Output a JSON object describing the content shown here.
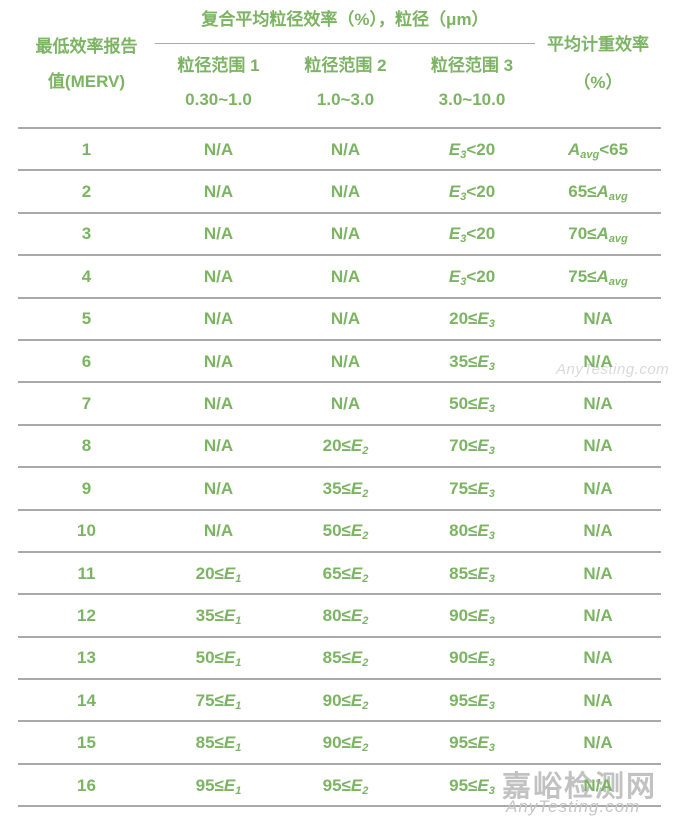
{
  "colors": {
    "text_green": "#7cb464",
    "line_gray": "#a9a9a9",
    "watermark_gray": "#bdbdbd"
  },
  "table": {
    "header": {
      "merv_line1": "最低效率报告",
      "merv_line2": "值(MERV)",
      "group_title": "复合平均粒径效率（%），粒径（μm）",
      "ranges": [
        {
          "label": "粒径范围 1",
          "range": "0.30~1.0"
        },
        {
          "label": "粒径范围 2",
          "range": "1.0~3.0"
        },
        {
          "label": "粒径范围 3",
          "range": "3.0~10.0"
        }
      ],
      "weight_line1": "平均计重效率",
      "weight_line2": "（%）"
    },
    "rows": [
      {
        "merv": "1",
        "r1": "N/A",
        "r2": "N/A",
        "r3": "*E*~3~<20",
        "w": "*A*~avg~<65"
      },
      {
        "merv": "2",
        "r1": "N/A",
        "r2": "N/A",
        "r3": "*E*~3~<20",
        "w": "65≤*A*~avg~"
      },
      {
        "merv": "3",
        "r1": "N/A",
        "r2": "N/A",
        "r3": "*E*~3~<20",
        "w": "70≤*A*~avg~"
      },
      {
        "merv": "4",
        "r1": "N/A",
        "r2": "N/A",
        "r3": "*E*~3~<20",
        "w": "75≤*A*~avg~"
      },
      {
        "merv": "5",
        "r1": "N/A",
        "r2": "N/A",
        "r3": "20≤*E*~3~",
        "w": "N/A"
      },
      {
        "merv": "6",
        "r1": "N/A",
        "r2": "N/A",
        "r3": "35≤*E*~3~",
        "w": "N/A"
      },
      {
        "merv": "7",
        "r1": "N/A",
        "r2": "N/A",
        "r3": "50≤*E*~3~",
        "w": "N/A"
      },
      {
        "merv": "8",
        "r1": "N/A",
        "r2": "20≤*E*~2~",
        "r3": "70≤*E*~3~",
        "w": "N/A"
      },
      {
        "merv": "9",
        "r1": "N/A",
        "r2": "35≤*E*~2~",
        "r3": "75≤*E*~3~",
        "w": "N/A"
      },
      {
        "merv": "10",
        "r1": "N/A",
        "r2": "50≤*E*~2~",
        "r3": "80≤*E*~3~",
        "w": "N/A"
      },
      {
        "merv": "11",
        "r1": "20≤*E*~1~",
        "r2": "65≤*E*~2~",
        "r3": "85≤*E*~3~",
        "w": "N/A"
      },
      {
        "merv": "12",
        "r1": "35≤*E*~1~",
        "r2": "80≤*E*~2~",
        "r3": "90≤*E*~3~",
        "w": "N/A"
      },
      {
        "merv": "13",
        "r1": "50≤*E*~1~",
        "r2": "85≤*E*~2~",
        "r3": "90≤*E*~3~",
        "w": "N/A"
      },
      {
        "merv": "14",
        "r1": "75≤*E*~1~",
        "r2": "90≤*E*~2~",
        "r3": "95≤*E*~3~",
        "w": "N/A"
      },
      {
        "merv": "15",
        "r1": "85≤*E*~1~",
        "r2": "90≤*E*~2~",
        "r3": "95≤*E*~3~",
        "w": "N/A"
      },
      {
        "merv": "16",
        "r1": "95≤*E*~1~",
        "r2": "95≤*E*~2~",
        "r3": "95≤*E*~3~",
        "w": "N/A"
      }
    ]
  },
  "watermark": {
    "mid_url": "AnyTesting.com",
    "site_name": "嘉峪检测网",
    "site_url": "AnyTesting.com"
  },
  "chart_data": {
    "type": "table",
    "title": "",
    "columns": [
      "最低效率报告值(MERV)",
      "复合平均粒径效率（%），粒径（μm）｜粒径范围 1 0.30~1.0",
      "复合平均粒径效率（%），粒径（μm）｜粒径范围 2 1.0~3.0",
      "复合平均粒径效率（%），粒径（μm）｜粒径范围 3 3.0~10.0",
      "平均计重效率（%）"
    ],
    "rows": [
      [
        "1",
        "N/A",
        "N/A",
        "E3<20",
        "Aavg<65"
      ],
      [
        "2",
        "N/A",
        "N/A",
        "E3<20",
        "65≤Aavg"
      ],
      [
        "3",
        "N/A",
        "N/A",
        "E3<20",
        "70≤Aavg"
      ],
      [
        "4",
        "N/A",
        "N/A",
        "E3<20",
        "75≤Aavg"
      ],
      [
        "5",
        "N/A",
        "N/A",
        "20≤E3",
        "N/A"
      ],
      [
        "6",
        "N/A",
        "N/A",
        "35≤E3",
        "N/A"
      ],
      [
        "7",
        "N/A",
        "N/A",
        "50≤E3",
        "N/A"
      ],
      [
        "8",
        "N/A",
        "20≤E2",
        "70≤E3",
        "N/A"
      ],
      [
        "9",
        "N/A",
        "35≤E2",
        "75≤E3",
        "N/A"
      ],
      [
        "10",
        "N/A",
        "50≤E2",
        "80≤E3",
        "N/A"
      ],
      [
        "11",
        "20≤E1",
        "65≤E2",
        "85≤E3",
        "N/A"
      ],
      [
        "12",
        "35≤E1",
        "80≤E2",
        "90≤E3",
        "N/A"
      ],
      [
        "13",
        "50≤E1",
        "85≤E2",
        "90≤E3",
        "N/A"
      ],
      [
        "14",
        "75≤E1",
        "90≤E2",
        "95≤E3",
        "N/A"
      ],
      [
        "15",
        "85≤E1",
        "90≤E2",
        "95≤E3",
        "N/A"
      ],
      [
        "16",
        "95≤E1",
        "95≤E2",
        "95≤E3",
        "N/A"
      ]
    ]
  }
}
